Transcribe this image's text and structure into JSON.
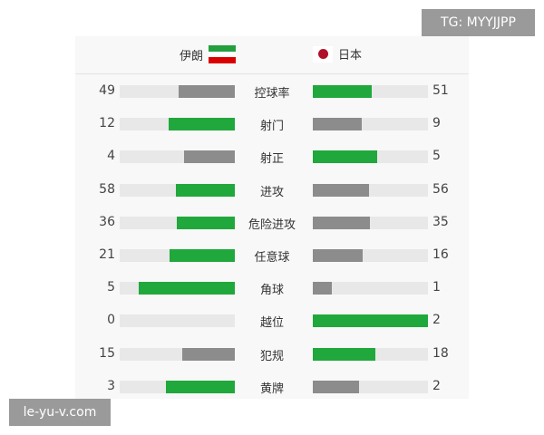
{
  "teams": {
    "home": "伊朗",
    "away": "日本",
    "home_flag": "iran-flag",
    "away_flag": "japan-flag"
  },
  "colors": {
    "winner": "#20a83c",
    "loser": "#8c8c8c",
    "track": "#e8e8e8"
  },
  "stats": [
    {
      "label": "控球率",
      "home": "49",
      "away": "51"
    },
    {
      "label": "射门",
      "home": "12",
      "away": "9"
    },
    {
      "label": "射正",
      "home": "4",
      "away": "5"
    },
    {
      "label": "进攻",
      "home": "58",
      "away": "56"
    },
    {
      "label": "危险进攻",
      "home": "36",
      "away": "35"
    },
    {
      "label": "任意球",
      "home": "21",
      "away": "16"
    },
    {
      "label": "角球",
      "home": "5",
      "away": "1"
    },
    {
      "label": "越位",
      "home": "0",
      "away": "2"
    },
    {
      "label": "犯规",
      "home": "15",
      "away": "18"
    },
    {
      "label": "黄牌",
      "home": "3",
      "away": "2"
    }
  ],
  "watermarks": {
    "top": "TG: MYYJJPP",
    "bottom": "le-yu-v.com"
  }
}
